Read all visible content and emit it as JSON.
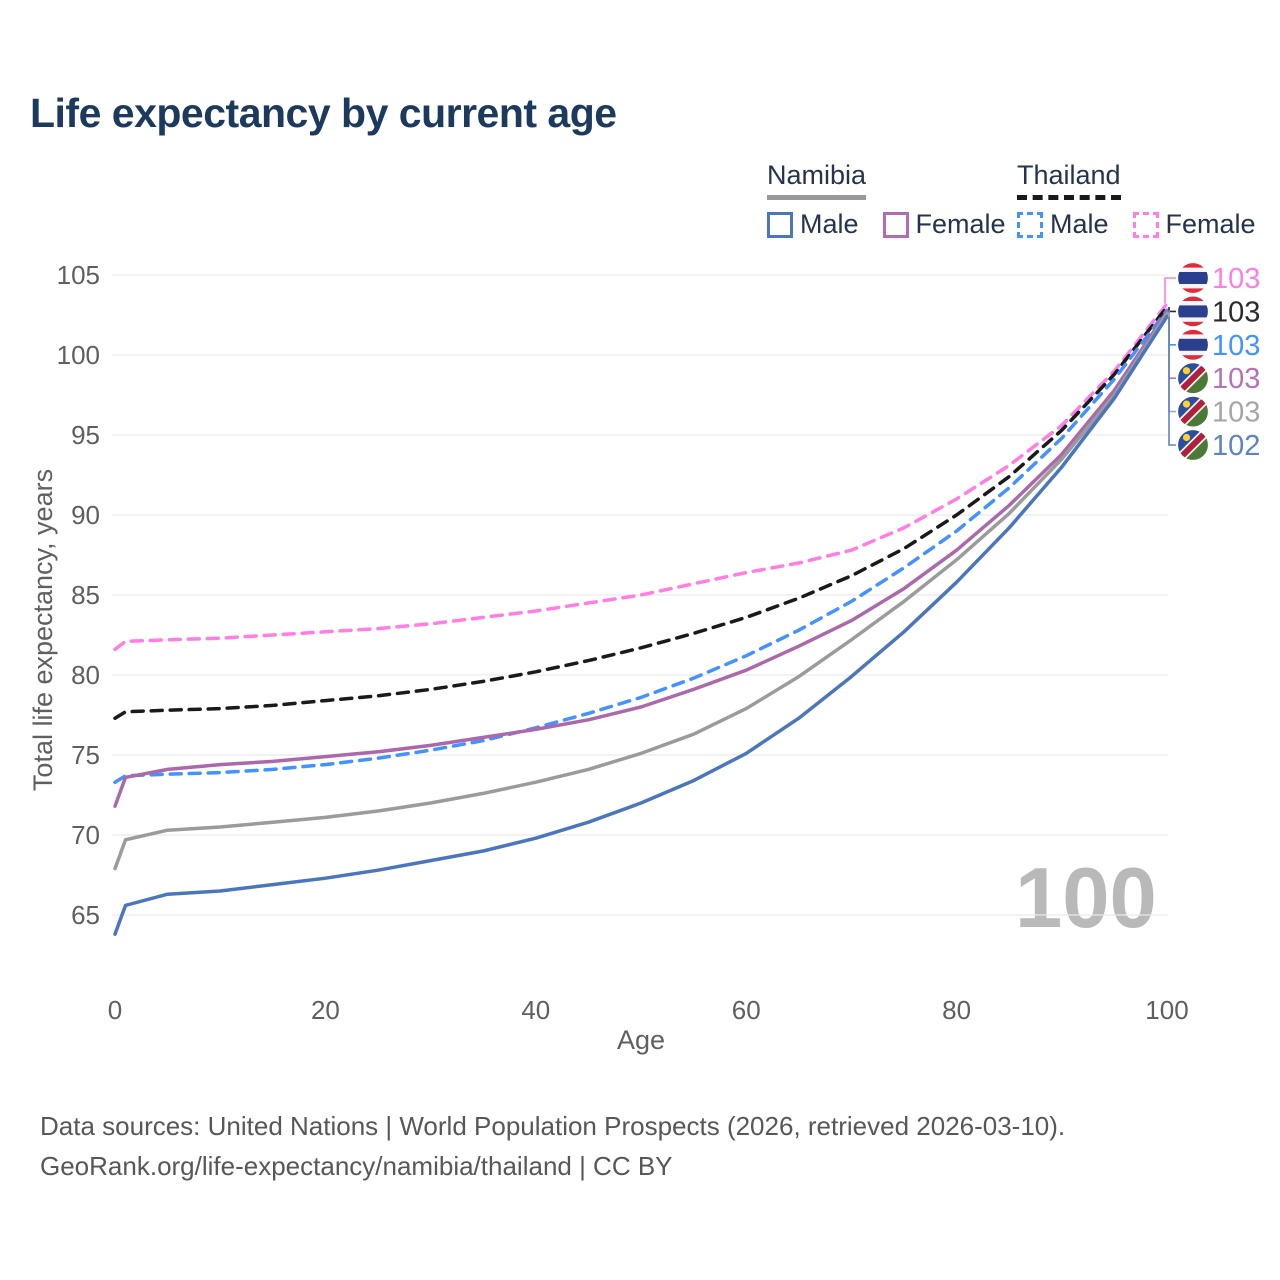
{
  "header": {
    "title": "Life expectancy by current age"
  },
  "legend": {
    "namibia": {
      "label": "Namibia",
      "male": "Male",
      "female": "Female"
    },
    "thailand": {
      "label": "Thailand",
      "male": "Male",
      "female": "Female"
    }
  },
  "chart_data": {
    "type": "line",
    "title": "Life expectancy by current age",
    "xlabel": "Age",
    "ylabel": "Total life expectancy, years",
    "xlim": [
      0,
      100
    ],
    "ylim": [
      62,
      106
    ],
    "xticks": [
      0,
      20,
      40,
      60,
      80,
      100
    ],
    "yticks": [
      65,
      70,
      75,
      80,
      85,
      90,
      95,
      100,
      105
    ],
    "grid": "horizontal",
    "legend_position": "top-right",
    "watermark_age": "100",
    "x": [
      0,
      1,
      5,
      10,
      15,
      20,
      25,
      30,
      35,
      40,
      45,
      50,
      55,
      60,
      65,
      70,
      75,
      80,
      85,
      90,
      95,
      100
    ],
    "series": [
      {
        "name": "Thailand Female",
        "country": "Thailand",
        "sex": "Female",
        "style": "dashed",
        "color": "#ff7de4",
        "values": [
          81.6,
          82.1,
          82.2,
          82.3,
          82.5,
          82.7,
          82.9,
          83.2,
          83.6,
          84.0,
          84.5,
          85.0,
          85.7,
          86.4,
          87.0,
          87.8,
          89.2,
          91.0,
          93.1,
          95.6,
          99.0,
          103.2
        ],
        "end_label": "103"
      },
      {
        "name": "Thailand Both sexes",
        "country": "Thailand",
        "sex": "Both",
        "style": "dashed",
        "color": "#1a1a1a",
        "values": [
          77.3,
          77.7,
          77.8,
          77.9,
          78.1,
          78.4,
          78.7,
          79.1,
          79.6,
          80.2,
          80.9,
          81.7,
          82.6,
          83.6,
          84.8,
          86.2,
          87.9,
          90.0,
          92.4,
          95.3,
          98.8,
          103.0
        ],
        "end_label": "103"
      },
      {
        "name": "Thailand Male",
        "country": "Thailand",
        "sex": "Male",
        "style": "dashed",
        "color": "#4292ff",
        "values": [
          73.3,
          73.7,
          73.8,
          73.9,
          74.1,
          74.4,
          74.8,
          75.3,
          75.9,
          76.7,
          77.6,
          78.6,
          79.8,
          81.2,
          82.8,
          84.6,
          86.7,
          89.0,
          91.7,
          94.8,
          98.5,
          102.8
        ],
        "end_label": "103"
      },
      {
        "name": "Namibia Female",
        "country": "Namibia",
        "sex": "Female",
        "style": "solid",
        "color": "#ab68ab",
        "values": [
          71.8,
          73.6,
          74.1,
          74.4,
          74.6,
          74.9,
          75.2,
          75.6,
          76.1,
          76.6,
          77.2,
          78.0,
          79.1,
          80.3,
          81.8,
          83.4,
          85.4,
          87.8,
          90.6,
          93.8,
          97.8,
          102.7
        ],
        "end_label": "103"
      },
      {
        "name": "Namibia Both sexes",
        "country": "Namibia",
        "sex": "Both",
        "style": "solid",
        "color": "#9b9b9b",
        "values": [
          67.9,
          69.7,
          70.3,
          70.5,
          70.8,
          71.1,
          71.5,
          72.0,
          72.6,
          73.3,
          74.1,
          75.1,
          76.3,
          77.9,
          79.9,
          82.2,
          84.6,
          87.2,
          90.1,
          93.5,
          97.5,
          102.6
        ],
        "end_label": "103"
      },
      {
        "name": "Namibia Male",
        "country": "Namibia",
        "sex": "Male",
        "style": "solid",
        "color": "#4b76bd",
        "values": [
          63.8,
          65.6,
          66.3,
          66.5,
          66.9,
          67.3,
          67.8,
          68.4,
          69.0,
          69.8,
          70.8,
          72.0,
          73.4,
          75.1,
          77.3,
          79.9,
          82.7,
          85.8,
          89.2,
          93.0,
          97.3,
          102.4
        ],
        "end_label": "102"
      }
    ],
    "end_labels": [
      {
        "value": "103",
        "flag": "thailand-flag",
        "color": "#ff7de4"
      },
      {
        "value": "103",
        "flag": "thailand-flag",
        "color": "#2b2b2b"
      },
      {
        "value": "103",
        "flag": "thailand-flag",
        "color": "#4292ff"
      },
      {
        "value": "103",
        "flag": "namibia-flag",
        "color": "#b573b5"
      },
      {
        "value": "103",
        "flag": "namibia-flag",
        "color": "#a6a6a6"
      },
      {
        "value": "102",
        "flag": "namibia-flag",
        "color": "#5b83c6"
      }
    ]
  },
  "footer": {
    "line1": "Data sources: United Nations | World Population Prospects (2026, retrieved 2026-03-10).",
    "line2": "GeoRank.org/life-expectancy/namibia/thailand | CC BY"
  }
}
